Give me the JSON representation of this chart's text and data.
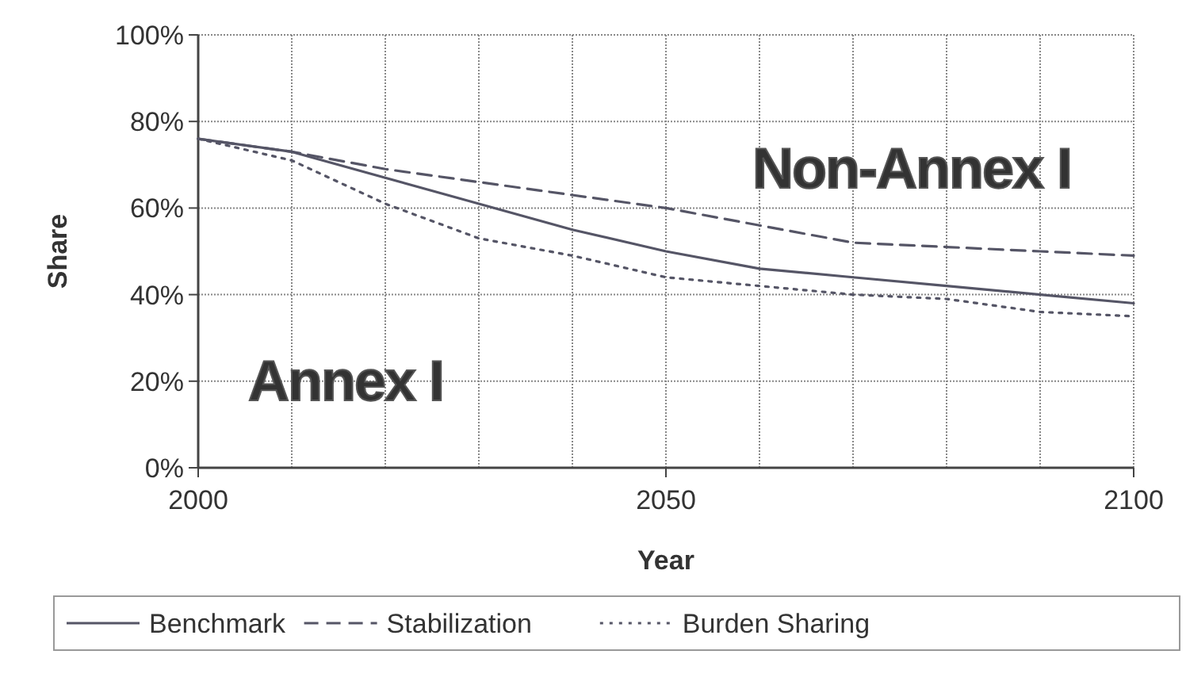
{
  "chart_data": {
    "type": "line",
    "xlabel": "Year",
    "ylabel": "Share",
    "x": [
      2000,
      2010,
      2020,
      2030,
      2040,
      2050,
      2060,
      2070,
      2080,
      2090,
      2100
    ],
    "xlim": [
      2000,
      2100
    ],
    "xticks": [
      2000,
      2050,
      2100
    ],
    "ylim": [
      0,
      100
    ],
    "yticks": [
      {
        "value": 0,
        "label": "0%"
      },
      {
        "value": 20,
        "label": "20%"
      },
      {
        "value": 40,
        "label": "40%"
      },
      {
        "value": 60,
        "label": "60%"
      },
      {
        "value": 80,
        "label": "80%"
      },
      {
        "value": 100,
        "label": "100%"
      }
    ],
    "grid": true,
    "legend": "bottom",
    "series": [
      {
        "name": "Benchmark",
        "color": "#555566",
        "line_style": "solid",
        "values": [
          76,
          73,
          67,
          61,
          55,
          50,
          46,
          44,
          42,
          40,
          38
        ]
      },
      {
        "name": "Stabilization",
        "color": "#555566",
        "line_style": "dashed",
        "values": [
          76,
          73,
          69,
          66,
          63,
          60,
          56,
          52,
          51,
          50,
          49
        ]
      },
      {
        "name": "Burden Sharing",
        "color": "#555566",
        "line_style": "dotted",
        "values": [
          76,
          71,
          61,
          53,
          49,
          44,
          42,
          40,
          39,
          36,
          35
        ]
      }
    ],
    "annotations": [
      "Annex I",
      "Non-Annex I"
    ]
  }
}
